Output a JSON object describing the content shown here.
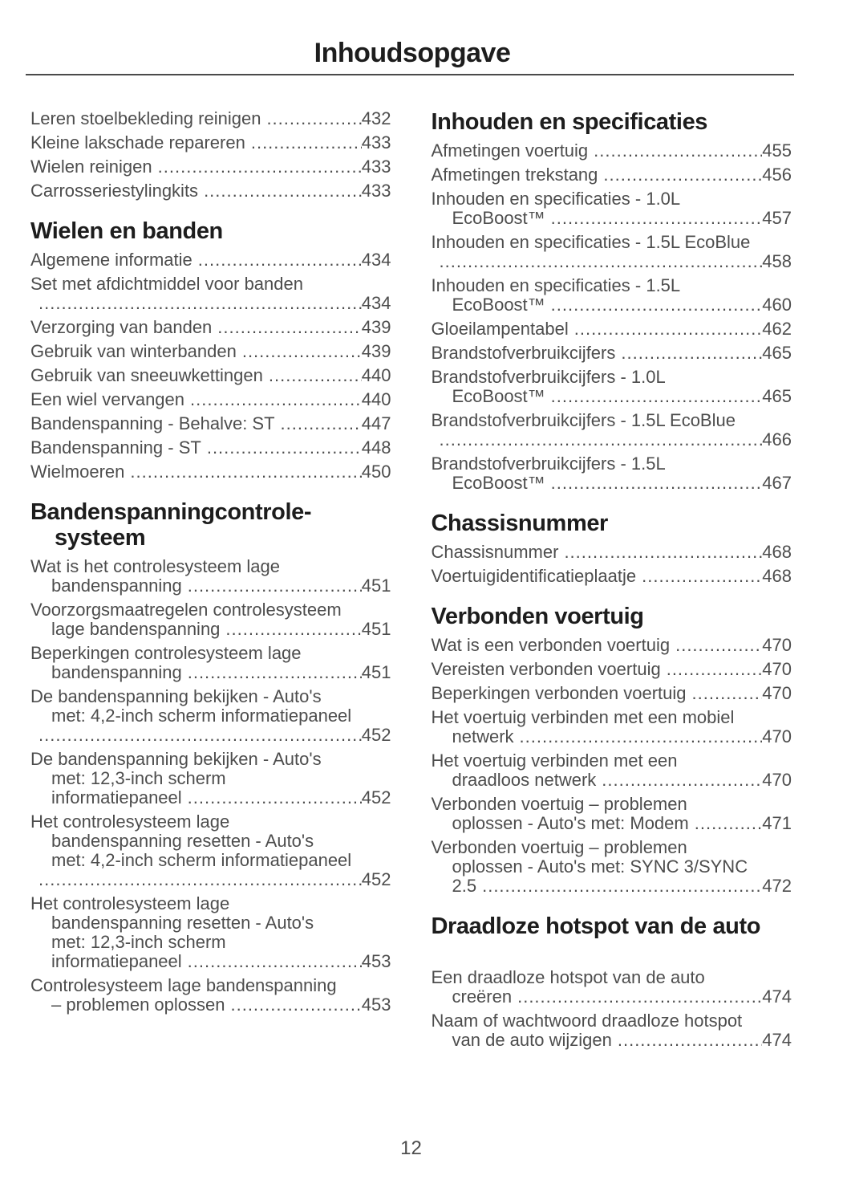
{
  "page": {
    "title": "Inhoudsopgave",
    "footer_page_number": "12",
    "text_color": "#4d4d4d",
    "heading_color": "#1d1d1d"
  },
  "columns": {
    "left": {
      "sections": [
        {
          "header_lines": [],
          "entries": [
            {
              "lines": [
                "Leren stoelbekleding reinigen"
              ],
              "page": "432"
            },
            {
              "lines": [
                "Kleine lakschade repareren"
              ],
              "page": "433"
            },
            {
              "lines": [
                "Wielen reinigen"
              ],
              "page": "433"
            },
            {
              "lines": [
                "Carrosseriestylingkits"
              ],
              "page": "433"
            }
          ]
        },
        {
          "header_lines": [
            "Wielen en banden"
          ],
          "entries": [
            {
              "lines": [
                "Algemene informatie"
              ],
              "page": "434"
            },
            {
              "lines": [
                "Set met afdichtmiddel voor banden",
                ""
              ],
              "page": "434"
            },
            {
              "lines": [
                "Verzorging van banden"
              ],
              "page": "439"
            },
            {
              "lines": [
                "Gebruik van winterbanden"
              ],
              "page": "439"
            },
            {
              "lines": [
                "Gebruik van sneeuwkettingen"
              ],
              "page": "440"
            },
            {
              "lines": [
                "Een wiel vervangen"
              ],
              "page": "440"
            },
            {
              "lines": [
                "Bandenspanning - Behalve: ST"
              ],
              "page": "447"
            },
            {
              "lines": [
                "Bandenspanning - ST"
              ],
              "page": "448"
            },
            {
              "lines": [
                "Wielmoeren"
              ],
              "page": "450"
            }
          ]
        },
        {
          "header_lines": [
            "Bandenspanningcontrole-",
            "systeem"
          ],
          "entries": [
            {
              "lines": [
                "Wat is het controlesysteem lage",
                "bandenspanning"
              ],
              "page": "451"
            },
            {
              "lines": [
                "Voorzorgsmaatregelen controlesysteem",
                "lage bandenspanning"
              ],
              "page": "451"
            },
            {
              "lines": [
                "Beperkingen controlesysteem lage",
                "bandenspanning"
              ],
              "page": "451"
            },
            {
              "lines": [
                "De bandenspanning bekijken - Auto's",
                "met: 4,2-inch scherm informatiepaneel",
                ""
              ],
              "page": "452"
            },
            {
              "lines": [
                "De bandenspanning bekijken - Auto's",
                "met: 12,3-inch scherm",
                "informatiepaneel"
              ],
              "page": "452"
            },
            {
              "lines": [
                "Het controlesysteem lage",
                "bandenspanning resetten - Auto's",
                "met: 4,2-inch scherm informatiepaneel",
                ""
              ],
              "page": "452"
            },
            {
              "lines": [
                "Het controlesysteem lage",
                "bandenspanning resetten - Auto's",
                "met: 12,3-inch scherm",
                "informatiepaneel"
              ],
              "page": "453"
            },
            {
              "lines": [
                "Controlesysteem lage bandenspanning",
                "– problemen oplossen"
              ],
              "page": "453"
            }
          ]
        }
      ]
    },
    "right": {
      "sections": [
        {
          "header_lines": [
            "Inhouden en specificaties"
          ],
          "entries": [
            {
              "lines": [
                "Afmetingen voertuig"
              ],
              "page": "455"
            },
            {
              "lines": [
                "Afmetingen trekstang"
              ],
              "page": "456"
            },
            {
              "lines": [
                "Inhouden en specificaties - 1.0L",
                "EcoBoost™"
              ],
              "page": "457"
            },
            {
              "lines": [
                "Inhouden en specificaties - 1.5L EcoBlue",
                ""
              ],
              "page": "458"
            },
            {
              "lines": [
                "Inhouden en specificaties - 1.5L",
                "EcoBoost™"
              ],
              "page": "460"
            },
            {
              "lines": [
                "Gloeilampentabel"
              ],
              "page": "462"
            },
            {
              "lines": [
                "Brandstofverbruikcijfers"
              ],
              "page": "465"
            },
            {
              "lines": [
                "Brandstofverbruikcijfers - 1.0L",
                "EcoBoost™"
              ],
              "page": "465"
            },
            {
              "lines": [
                "Brandstofverbruikcijfers - 1.5L EcoBlue",
                ""
              ],
              "page": "466"
            },
            {
              "lines": [
                "Brandstofverbruikcijfers - 1.5L",
                "EcoBoost™"
              ],
              "page": "467"
            }
          ]
        },
        {
          "header_lines": [
            "Chassisnummer"
          ],
          "entries": [
            {
              "lines": [
                "Chassisnummer"
              ],
              "page": "468"
            },
            {
              "lines": [
                "Voertuigidentificatieplaatje"
              ],
              "page": "468"
            }
          ]
        },
        {
          "header_lines": [
            "Verbonden voertuig"
          ],
          "entries": [
            {
              "lines": [
                "Wat is een verbonden voertuig"
              ],
              "page": "470"
            },
            {
              "lines": [
                "Vereisten verbonden voertuig"
              ],
              "page": "470"
            },
            {
              "lines": [
                "Beperkingen verbonden voertuig"
              ],
              "page": "470"
            },
            {
              "lines": [
                "Het voertuig verbinden met een mobiel",
                "netwerk"
              ],
              "page": "470"
            },
            {
              "lines": [
                "Het voertuig verbinden met een",
                "draadloos netwerk"
              ],
              "page": "470"
            },
            {
              "lines": [
                "Verbonden voertuig – problemen",
                "oplossen - Auto's met: Modem"
              ],
              "page": "471"
            },
            {
              "lines": [
                "Verbonden voertuig – problemen",
                "oplossen - Auto's met: SYNC 3/SYNC",
                "2.5"
              ],
              "page": "472"
            }
          ]
        },
        {
          "header_lines": [
            "Draadloze hotspot van de auto"
          ],
          "extra_gap": true,
          "entries": [
            {
              "lines": [
                "Een draadloze hotspot van de auto",
                "creëren"
              ],
              "page": "474"
            },
            {
              "lines": [
                "Naam of wachtwoord draadloze hotspot",
                "van de auto wijzigen"
              ],
              "page": "474"
            }
          ]
        }
      ]
    }
  }
}
